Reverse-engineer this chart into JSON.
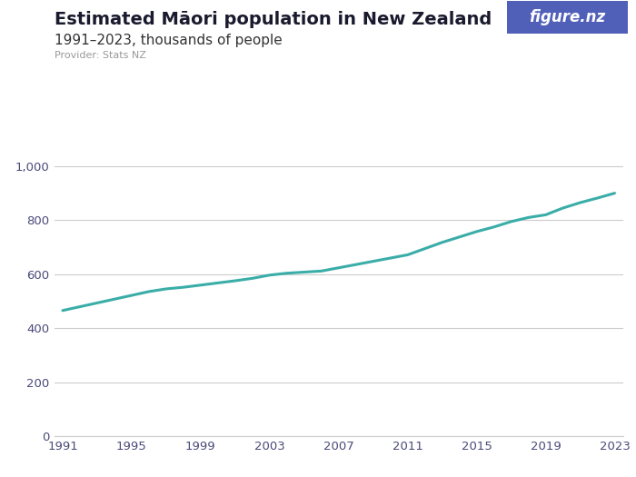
{
  "title": "Estimated Māori population in New Zealand",
  "subtitle": "1991–2023, thousands of people",
  "provider": "Provider: Stats NZ",
  "years": [
    1991,
    1992,
    1993,
    1994,
    1995,
    1996,
    1997,
    1998,
    1999,
    2000,
    2001,
    2002,
    2003,
    2004,
    2005,
    2006,
    2007,
    2008,
    2009,
    2010,
    2011,
    2012,
    2013,
    2014,
    2015,
    2016,
    2017,
    2018,
    2019,
    2020,
    2021,
    2022,
    2023
  ],
  "values": [
    466,
    480,
    494,
    508,
    522,
    536,
    546,
    552,
    560,
    568,
    576,
    585,
    597,
    604,
    608,
    612,
    624,
    636,
    648,
    660,
    672,
    695,
    718,
    738,
    758,
    775,
    795,
    810,
    820,
    845,
    865,
    882,
    900
  ],
  "line_color": "#3aada8",
  "line_width": 2.2,
  "bg_color": "#ffffff",
  "grid_color": "#cccccc",
  "title_color": "#1a1a2e",
  "subtitle_color": "#333333",
  "provider_color": "#999999",
  "tick_color": "#4a4a7a",
  "yticks": [
    0,
    200,
    400,
    600,
    800,
    1000
  ],
  "xticks": [
    1991,
    1995,
    1999,
    2003,
    2007,
    2011,
    2015,
    2019,
    2023
  ],
  "ylim": [
    0,
    1050
  ],
  "xlim_lo": 1990.5,
  "xlim_hi": 2023.5,
  "logo_bg": "#5060b8",
  "logo_text": "figure.nz",
  "logo_text_color": "#ffffff",
  "title_fontsize": 14,
  "subtitle_fontsize": 11,
  "provider_fontsize": 8,
  "tick_fontsize": 9.5
}
